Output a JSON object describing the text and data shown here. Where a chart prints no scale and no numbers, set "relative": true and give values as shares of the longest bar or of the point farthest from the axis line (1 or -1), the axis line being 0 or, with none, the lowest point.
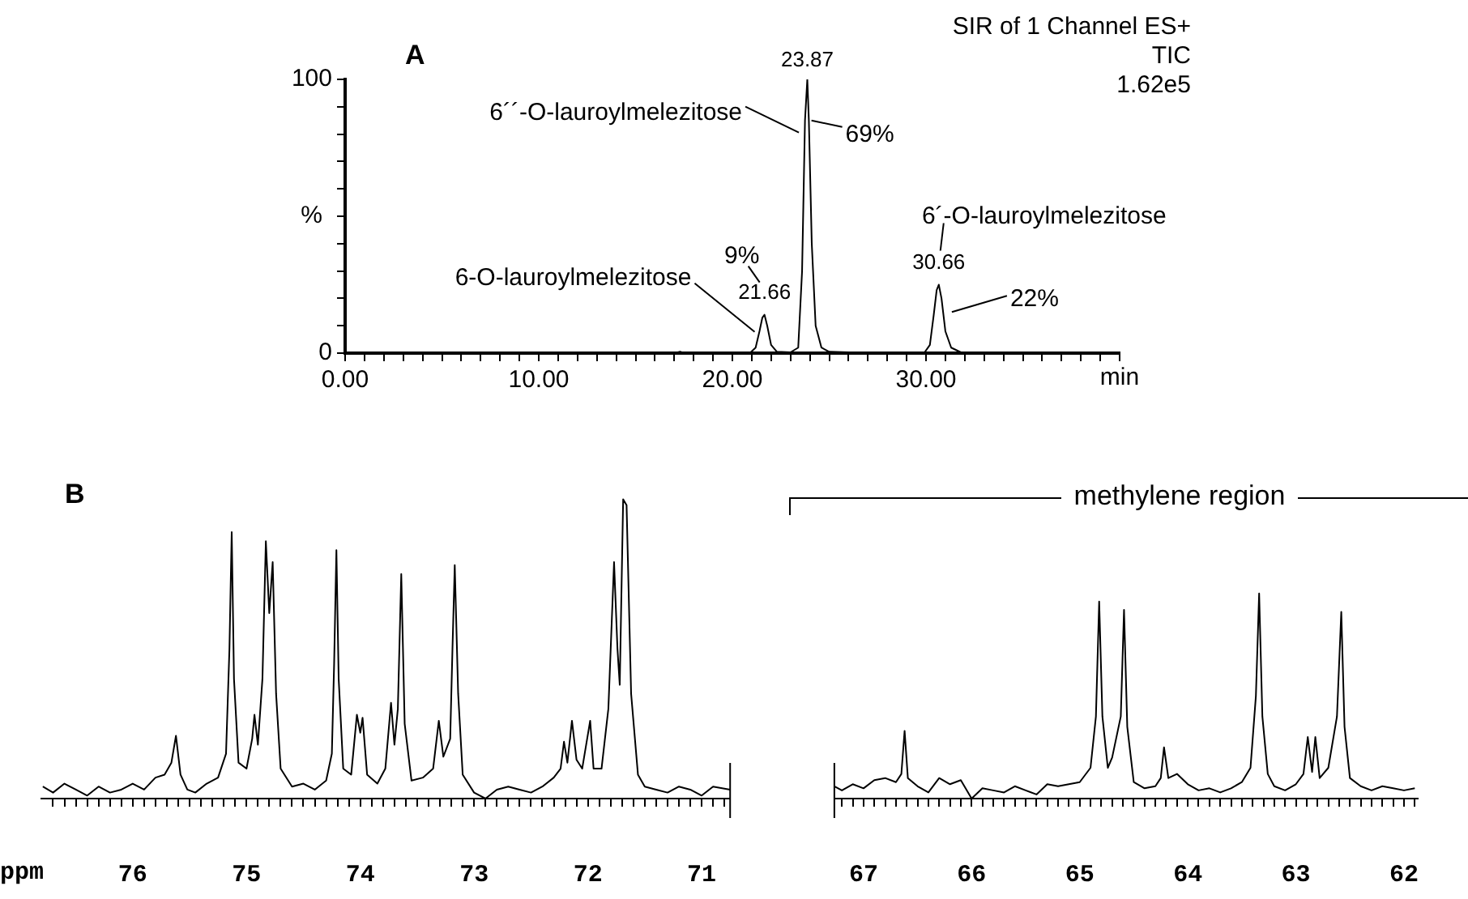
{
  "chart_data": [
    {
      "type": "line",
      "title": "A",
      "xlabel": "min",
      "ylabel": "%",
      "xlim": [
        0,
        40
      ],
      "ylim": [
        0,
        100
      ],
      "xticks": [
        {
          "value": 0,
          "label": "0.00"
        },
        {
          "value": 1,
          "label": null
        },
        {
          "value": 2,
          "label": null
        },
        {
          "value": 3,
          "label": null
        },
        {
          "value": 4,
          "label": null
        },
        {
          "value": 5,
          "label": null
        },
        {
          "value": 6,
          "label": null
        },
        {
          "value": 7,
          "label": null
        },
        {
          "value": 8,
          "label": null
        },
        {
          "value": 9,
          "label": null
        },
        {
          "value": 10,
          "label": "10.00"
        },
        {
          "value": 11,
          "label": null
        },
        {
          "value": 12,
          "label": null
        },
        {
          "value": 13,
          "label": null
        },
        {
          "value": 14,
          "label": null
        },
        {
          "value": 15,
          "label": null
        },
        {
          "value": 16,
          "label": null
        },
        {
          "value": 17,
          "label": null
        },
        {
          "value": 18,
          "label": null
        },
        {
          "value": 19,
          "label": null
        },
        {
          "value": 20,
          "label": "20.00"
        },
        {
          "value": 21,
          "label": null
        },
        {
          "value": 22,
          "label": null
        },
        {
          "value": 23,
          "label": null
        },
        {
          "value": 24,
          "label": null
        },
        {
          "value": 25,
          "label": null
        },
        {
          "value": 26,
          "label": null
        },
        {
          "value": 27,
          "label": null
        },
        {
          "value": 28,
          "label": null
        },
        {
          "value": 29,
          "label": null
        },
        {
          "value": 30,
          "label": "30.00"
        },
        {
          "value": 31,
          "label": null
        },
        {
          "value": 32,
          "label": null
        },
        {
          "value": 33,
          "label": null
        },
        {
          "value": 34,
          "label": null
        },
        {
          "value": 35,
          "label": null
        },
        {
          "value": 36,
          "label": null
        },
        {
          "value": 37,
          "label": null
        },
        {
          "value": 38,
          "label": null
        },
        {
          "value": 39,
          "label": null
        },
        {
          "value": 40,
          "label": null
        }
      ],
      "yticks": [
        0,
        {
          "value": 10,
          "label": null
        },
        {
          "value": 20,
          "label": null
        },
        {
          "value": 30,
          "label": null
        },
        {
          "value": 40,
          "label": null
        },
        {
          "value": 50,
          "label": null
        },
        {
          "value": 60,
          "label": null
        },
        {
          "value": 70,
          "label": null
        },
        {
          "value": 80,
          "label": null
        },
        {
          "value": 90,
          "label": null
        },
        100
      ],
      "marker": "none",
      "line_style": "solid",
      "grid": false,
      "legend": false,
      "series": [
        {
          "color": "#000000",
          "x": [
            0,
            17.0,
            17.3,
            17.5,
            20.9,
            21.2,
            21.4,
            21.55,
            21.66,
            21.8,
            22.0,
            22.3,
            23.0,
            23.4,
            23.6,
            23.75,
            23.87,
            23.95,
            24.1,
            24.3,
            24.6,
            25,
            26,
            26.2,
            29.9,
            30.2,
            30.4,
            30.55,
            30.66,
            30.8,
            31.0,
            31.3,
            31.8,
            32.2,
            40
          ],
          "values": [
            0,
            0,
            0.5,
            0,
            0,
            2,
            8,
            13,
            14,
            10,
            3,
            0.5,
            0.3,
            2,
            30,
            85,
            100,
            85,
            40,
            10,
            2,
            0.5,
            0.3,
            0,
            0,
            3,
            14,
            23,
            25,
            20,
            8,
            2,
            0.3,
            0,
            0
          ]
        }
      ],
      "annotations": [
        {
          "text": "23.87",
          "x": 23.87,
          "y": 100
        },
        {
          "text": "21.66",
          "x": 21.66,
          "y": 14
        },
        {
          "text": "30.66",
          "x": 30.66,
          "y": 25
        },
        {
          "text": "6-O-lauroylmelezitose",
          "x": 21.4,
          "y": 6
        },
        {
          "text": "9%",
          "x": 21.66,
          "y": 14
        },
        {
          "text": "6´´-O-lauroylmelezitose",
          "x": 23.6,
          "y": 80
        },
        {
          "text": "69%",
          "x": 24.0,
          "y": 85
        },
        {
          "text": "6´-O-lauroylmelezitose",
          "x": 30.66,
          "y": 25
        },
        {
          "text": "22%",
          "x": 31.0,
          "y": 15
        },
        "SIR of 1 Channel ES+",
        "TIC",
        "1.62e5"
      ]
    },
    {
      "type": "line",
      "title": "B",
      "xlabel": "ppm",
      "relative": true,
      "xlim": [
        76.8,
        70.75
      ],
      "xticks": [
        {
          "value": 76.7,
          "label": null
        },
        {
          "value": 76.6,
          "label": null
        },
        {
          "value": 76.5,
          "label": null
        },
        {
          "value": 76.4,
          "label": null
        },
        {
          "value": 76.3,
          "label": null
        },
        {
          "value": 76.2,
          "label": null
        },
        {
          "value": 76.1,
          "label": null
        },
        76,
        {
          "value": 75.9,
          "label": null
        },
        {
          "value": 75.8,
          "label": null
        },
        {
          "value": 75.7,
          "label": null
        },
        {
          "value": 75.6,
          "label": null
        },
        {
          "value": 75.5,
          "label": null
        },
        {
          "value": 75.4,
          "label": null
        },
        {
          "value": 75.3,
          "label": null
        },
        {
          "value": 75.2,
          "label": null
        },
        {
          "value": 75.1,
          "label": null
        },
        75,
        {
          "value": 74.9,
          "label": null
        },
        {
          "value": 74.8,
          "label": null
        },
        {
          "value": 74.7,
          "label": null
        },
        {
          "value": 74.6,
          "label": null
        },
        {
          "value": 74.5,
          "label": null
        },
        {
          "value": 74.4,
          "label": null
        },
        {
          "value": 74.3,
          "label": null
        },
        {
          "value": 74.2,
          "label": null
        },
        {
          "value": 74.1,
          "label": null
        },
        74,
        {
          "value": 73.9,
          "label": null
        },
        {
          "value": 73.8,
          "label": null
        },
        {
          "value": 73.7,
          "label": null
        },
        {
          "value": 73.6,
          "label": null
        },
        {
          "value": 73.5,
          "label": null
        },
        {
          "value": 73.4,
          "label": null
        },
        {
          "value": 73.3,
          "label": null
        },
        {
          "value": 73.2,
          "label": null
        },
        {
          "value": 73.1,
          "label": null
        },
        73,
        {
          "value": 72.9,
          "label": null
        },
        {
          "value": 72.8,
          "label": null
        },
        {
          "value": 72.7,
          "label": null
        },
        {
          "value": 72.6,
          "label": null
        },
        {
          "value": 72.5,
          "label": null
        },
        {
          "value": 72.4,
          "label": null
        },
        {
          "value": 72.3,
          "label": null
        },
        {
          "value": 72.2,
          "label": null
        },
        {
          "value": 72.1,
          "label": null
        },
        72,
        {
          "value": 71.9,
          "label": null
        },
        {
          "value": 71.8,
          "label": null
        },
        {
          "value": 71.7,
          "label": null
        },
        {
          "value": 71.6,
          "label": null
        },
        {
          "value": 71.5,
          "label": null
        },
        {
          "value": 71.4,
          "label": null
        },
        {
          "value": 71.3,
          "label": null
        },
        {
          "value": 71.2,
          "label": null
        },
        {
          "value": 71.1,
          "label": null
        },
        71,
        {
          "value": 70.9,
          "label": null
        },
        {
          "value": 70.8,
          "label": null
        }
      ],
      "marker": "none",
      "line_style": "solid",
      "grid": false,
      "legend": false,
      "series": [
        {
          "color": "#000000",
          "x": [
            76.79,
            76.7,
            76.6,
            76.5,
            76.4,
            76.3,
            76.2,
            76.1,
            76.0,
            75.9,
            75.8,
            75.72,
            75.66,
            75.62,
            75.58,
            75.52,
            75.45,
            75.35,
            75.25,
            75.18,
            75.15,
            75.13,
            75.11,
            75.07,
            75.0,
            74.95,
            74.93,
            74.9,
            74.86,
            74.83,
            74.8,
            74.77,
            74.74,
            74.7,
            74.6,
            74.5,
            74.4,
            74.3,
            74.25,
            74.23,
            74.21,
            74.19,
            74.15,
            74.08,
            74.03,
            74.0,
            73.98,
            73.94,
            73.85,
            73.78,
            73.73,
            73.7,
            73.67,
            73.64,
            73.61,
            73.55,
            73.45,
            73.36,
            73.31,
            73.27,
            73.21,
            73.19,
            73.17,
            73.14,
            73.1,
            73.0,
            72.9,
            72.8,
            72.7,
            72.6,
            72.5,
            72.4,
            72.3,
            72.24,
            72.21,
            72.18,
            72.14,
            72.1,
            72.05,
            71.98,
            71.95,
            71.88,
            71.82,
            71.77,
            71.74,
            71.72,
            71.69,
            71.66,
            71.62,
            71.56,
            71.5,
            71.4,
            71.3,
            71.2,
            71.1,
            71.0,
            70.9,
            70.75
          ],
          "values": [
            0.04,
            0.02,
            0.05,
            0.03,
            0.01,
            0.04,
            0.02,
            0.03,
            0.05,
            0.03,
            0.07,
            0.08,
            0.12,
            0.21,
            0.08,
            0.03,
            0.02,
            0.05,
            0.07,
            0.15,
            0.5,
            0.89,
            0.4,
            0.12,
            0.1,
            0.2,
            0.28,
            0.18,
            0.4,
            0.86,
            0.62,
            0.79,
            0.35,
            0.1,
            0.04,
            0.05,
            0.03,
            0.06,
            0.15,
            0.45,
            0.83,
            0.4,
            0.1,
            0.08,
            0.28,
            0.22,
            0.27,
            0.08,
            0.05,
            0.1,
            0.32,
            0.18,
            0.3,
            0.75,
            0.25,
            0.06,
            0.07,
            0.1,
            0.26,
            0.14,
            0.2,
            0.5,
            0.78,
            0.35,
            0.08,
            0.02,
            0,
            0.03,
            0.04,
            0.03,
            0.02,
            0.04,
            0.07,
            0.1,
            0.19,
            0.12,
            0.26,
            0.13,
            0.1,
            0.26,
            0.1,
            0.1,
            0.3,
            0.79,
            0.5,
            0.38,
            1.0,
            0.98,
            0.35,
            0.08,
            0.04,
            0.03,
            0.02,
            0.04,
            0.03,
            0.01,
            0.04,
            0.03
          ]
        }
      ]
    },
    {
      "type": "line",
      "relative": true,
      "xlim": [
        67.27,
        61.87
      ],
      "xticks": [
        {
          "value": 67.2,
          "label": null
        },
        {
          "value": 67.1,
          "label": null
        },
        67,
        {
          "value": 66.9,
          "label": null
        },
        {
          "value": 66.8,
          "label": null
        },
        {
          "value": 66.7,
          "label": null
        },
        {
          "value": 66.6,
          "label": null
        },
        {
          "value": 66.5,
          "label": null
        },
        {
          "value": 66.4,
          "label": null
        },
        {
          "value": 66.3,
          "label": null
        },
        {
          "value": 66.2,
          "label": null
        },
        {
          "value": 66.1,
          "label": null
        },
        66,
        {
          "value": 65.9,
          "label": null
        },
        {
          "value": 65.8,
          "label": null
        },
        {
          "value": 65.7,
          "label": null
        },
        {
          "value": 65.6,
          "label": null
        },
        {
          "value": 65.5,
          "label": null
        },
        {
          "value": 65.4,
          "label": null
        },
        {
          "value": 65.3,
          "label": null
        },
        {
          "value": 65.2,
          "label": null
        },
        {
          "value": 65.1,
          "label": null
        },
        65,
        {
          "value": 64.9,
          "label": null
        },
        {
          "value": 64.8,
          "label": null
        },
        {
          "value": 64.7,
          "label": null
        },
        {
          "value": 64.6,
          "label": null
        },
        {
          "value": 64.5,
          "label": null
        },
        {
          "value": 64.4,
          "label": null
        },
        {
          "value": 64.3,
          "label": null
        },
        {
          "value": 64.2,
          "label": null
        },
        {
          "value": 64.1,
          "label": null
        },
        64,
        {
          "value": 63.9,
          "label": null
        },
        {
          "value": 63.8,
          "label": null
        },
        {
          "value": 63.7,
          "label": null
        },
        {
          "value": 63.6,
          "label": null
        },
        {
          "value": 63.5,
          "label": null
        },
        {
          "value": 63.4,
          "label": null
        },
        {
          "value": 63.3,
          "label": null
        },
        {
          "value": 63.2,
          "label": null
        },
        {
          "value": 63.1,
          "label": null
        },
        63,
        {
          "value": 62.9,
          "label": null
        },
        {
          "value": 62.8,
          "label": null
        },
        {
          "value": 62.7,
          "label": null
        },
        {
          "value": 62.6,
          "label": null
        },
        {
          "value": 62.5,
          "label": null
        },
        {
          "value": 62.4,
          "label": null
        },
        {
          "value": 62.3,
          "label": null
        },
        {
          "value": 62.2,
          "label": null
        },
        {
          "value": 62.1,
          "label": null
        },
        62,
        {
          "value": 61.9,
          "label": null
        }
      ],
      "marker": "none",
      "line_style": "solid",
      "grid": false,
      "legend": false,
      "annotations": [
        "methylene region"
      ],
      "series": [
        {
          "color": "#000000",
          "x": [
            67.27,
            67.2,
            67.1,
            67.0,
            66.9,
            66.8,
            66.7,
            66.65,
            66.62,
            66.59,
            66.5,
            66.4,
            66.3,
            66.2,
            66.1,
            66.0,
            65.9,
            65.8,
            65.7,
            65.6,
            65.5,
            65.4,
            65.3,
            65.2,
            65.0,
            64.9,
            64.85,
            64.82,
            64.79,
            64.74,
            64.7,
            64.62,
            64.59,
            64.56,
            64.5,
            64.4,
            64.3,
            64.25,
            64.22,
            64.18,
            64.1,
            64.0,
            63.9,
            63.8,
            63.7,
            63.6,
            63.5,
            63.42,
            63.37,
            63.34,
            63.31,
            63.26,
            63.2,
            63.1,
            63.0,
            62.93,
            62.89,
            62.85,
            62.82,
            62.78,
            62.7,
            62.62,
            62.58,
            62.55,
            62.5,
            62.4,
            62.3,
            62.2,
            62.1,
            62.0,
            61.9
          ],
          "values": [
            0.06,
            0.04,
            0.07,
            0.05,
            0.09,
            0.1,
            0.08,
            0.12,
            0.33,
            0.1,
            0.06,
            0.03,
            0.1,
            0.07,
            0.09,
            0,
            0.05,
            0.04,
            0.03,
            0.06,
            0.04,
            0.02,
            0.07,
            0.06,
            0.08,
            0.15,
            0.4,
            0.96,
            0.4,
            0.15,
            0.2,
            0.4,
            0.92,
            0.35,
            0.08,
            0.05,
            0.06,
            0.1,
            0.25,
            0.1,
            0.12,
            0.07,
            0.04,
            0.05,
            0.03,
            0.05,
            0.08,
            0.15,
            0.5,
            1.0,
            0.4,
            0.12,
            0.06,
            0.04,
            0.07,
            0.12,
            0.3,
            0.13,
            0.3,
            0.1,
            0.15,
            0.4,
            0.91,
            0.35,
            0.1,
            0.06,
            0.04,
            0.06,
            0.05,
            0.04,
            0.05
          ]
        }
      ]
    }
  ]
}
